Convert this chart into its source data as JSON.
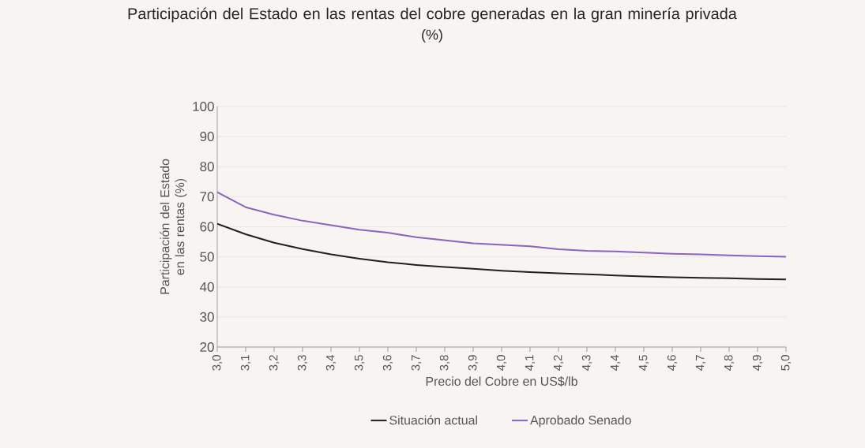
{
  "chart_data": {
    "type": "line",
    "title": "Participación del Estado en las rentas del cobre generadas en la gran minería privada",
    "subtitle": "(%)",
    "xlabel": "Precio del Cobre en US$/lb",
    "ylabel": "Participación del Estado en las rentas (%)",
    "categories": [
      "3,0",
      "3,1",
      "3,2",
      "3,3",
      "3,4",
      "3,5",
      "3,6",
      "3,7",
      "3,8",
      "3,9",
      "4,0",
      "4,1",
      "4,2",
      "4,3",
      "4,4",
      "4,5",
      "4,6",
      "4,7",
      "4,8",
      "4,9",
      "5,0"
    ],
    "series": [
      {
        "name": "Situación actual",
        "color": "#231f20",
        "values": [
          61,
          57.5,
          54.7,
          52.6,
          50.8,
          49.4,
          48.2,
          47.3,
          46.6,
          46,
          45.4,
          44.9,
          44.5,
          44.2,
          43.8,
          43.5,
          43.2,
          43,
          42.9,
          42.6,
          42.5
        ]
      },
      {
        "name": "Aprobado Senado",
        "color": "#8b63c0",
        "values": [
          71.5,
          66.5,
          64,
          62,
          60.5,
          59,
          58,
          56.5,
          55.5,
          54.5,
          54,
          53.5,
          52.5,
          52,
          51.8,
          51.4,
          51,
          50.8,
          50.5,
          50.2,
          50
        ]
      }
    ],
    "ylim": [
      20,
      100
    ],
    "yticks": [
      20,
      30,
      40,
      50,
      60,
      70,
      80,
      90,
      100
    ],
    "grid": "y",
    "legend": "bottom",
    "marker": "none",
    "line_style": "solid"
  }
}
